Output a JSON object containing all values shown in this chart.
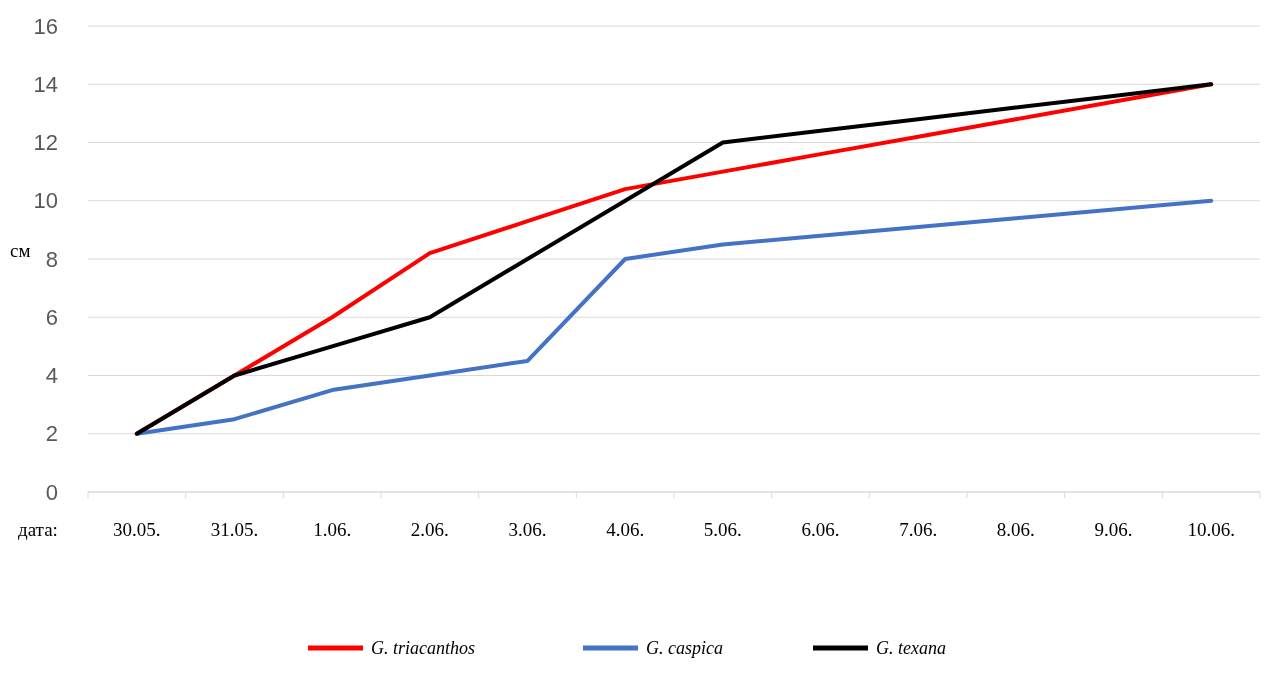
{
  "chart_data": {
    "type": "line",
    "xlabel": "дата:",
    "ylabel": "см",
    "categories": [
      "30.05.",
      "31.05.",
      "1.06.",
      "2.06.",
      "3.06.",
      "4.06.",
      "5.06.",
      "6.06.",
      "7.06.",
      "8.06.",
      "9.06.",
      "10.06."
    ],
    "series": [
      {
        "name": "G. triacanthos",
        "color": "#ff0000",
        "values": [
          2,
          4,
          6,
          8.2,
          9.3,
          10.4,
          11,
          11.6,
          12.2,
          12.8,
          13.4,
          14
        ]
      },
      {
        "name": "G. caspica",
        "color": "#4472c4",
        "values": [
          2,
          2.5,
          3.5,
          4,
          4.5,
          8,
          8.5,
          8.8,
          9.1,
          9.4,
          9.7,
          10
        ]
      },
      {
        "name": "G. texana",
        "color": "#000000",
        "values": [
          2,
          4,
          5,
          6,
          8,
          10,
          12,
          12.4,
          12.8,
          13.2,
          13.6,
          14
        ]
      }
    ],
    "ylim": [
      0,
      16
    ],
    "yticks": [
      0,
      2,
      4,
      6,
      8,
      10,
      12,
      14,
      16
    ],
    "grid": "y",
    "legend": "bottom",
    "marker": "none",
    "line_style": "solid"
  }
}
